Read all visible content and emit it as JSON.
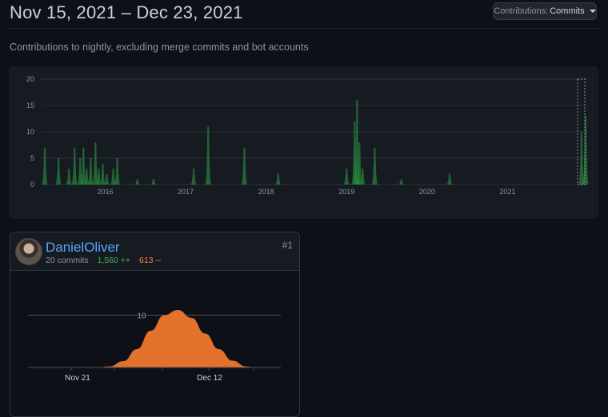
{
  "header": {
    "title": "Nov 15, 2021 – Dec 23, 2021",
    "select_prefix": "Contributions:",
    "select_value": "Commits"
  },
  "subtitle": "Contributions to nightly, excluding merge commits and bot accounts",
  "colors": {
    "overview_fill": "#2ea043",
    "user_fill": "#e3722c",
    "link": "#58a6ff",
    "additions": "#3fb950",
    "deletions": "#f0883e"
  },
  "chart_data": [
    {
      "type": "area",
      "ylim": [
        0,
        20
      ],
      "y_ticks": [
        "0",
        "5",
        "10",
        "15",
        "20"
      ],
      "x_ticks": [
        "2016",
        "2017",
        "2018",
        "2019",
        "2020",
        "2021"
      ],
      "xlim": [
        2015.2,
        2022.0
      ],
      "series": [
        {
          "x": [
            2015.25,
            2015.42,
            2015.55,
            2015.62,
            2015.69,
            2015.73,
            2015.77,
            2015.82,
            2015.88,
            2015.92,
            2015.97,
            2016.02,
            2016.1,
            2016.15,
            2016.4,
            2016.6,
            2017.1,
            2017.28,
            2017.73,
            2018.15,
            2019.0,
            2019.1,
            2019.13,
            2019.16,
            2019.2,
            2019.35,
            2019.68,
            2020.28,
            2021.92,
            2021.97
          ],
          "y": [
            7,
            5,
            3,
            7,
            5,
            7,
            3,
            5,
            8,
            3,
            4,
            2,
            3,
            5,
            1,
            1,
            3,
            11,
            7,
            2,
            3,
            12,
            16,
            8,
            3,
            7,
            1,
            2,
            10,
            13
          ]
        }
      ]
    },
    {
      "type": "area",
      "y_ticks": [
        "10"
      ],
      "x_ticks": [
        "Nov 21",
        "Dec 12"
      ],
      "ylim": [
        0,
        11
      ],
      "series": [
        {
          "x": [
            0,
            3,
            6,
            9,
            12,
            15,
            18,
            21,
            24,
            27,
            30,
            33,
            36,
            38
          ],
          "y": [
            0,
            0,
            0.2,
            1.2,
            3.5,
            7,
            10,
            11,
            9.5,
            6.5,
            3.5,
            1.3,
            0.2,
            0
          ]
        }
      ]
    }
  ],
  "contributor": {
    "name": "DanielOliver",
    "rank": "#1",
    "commits": "20 commits",
    "additions": "1,560 ++",
    "deletions": "613 --"
  }
}
